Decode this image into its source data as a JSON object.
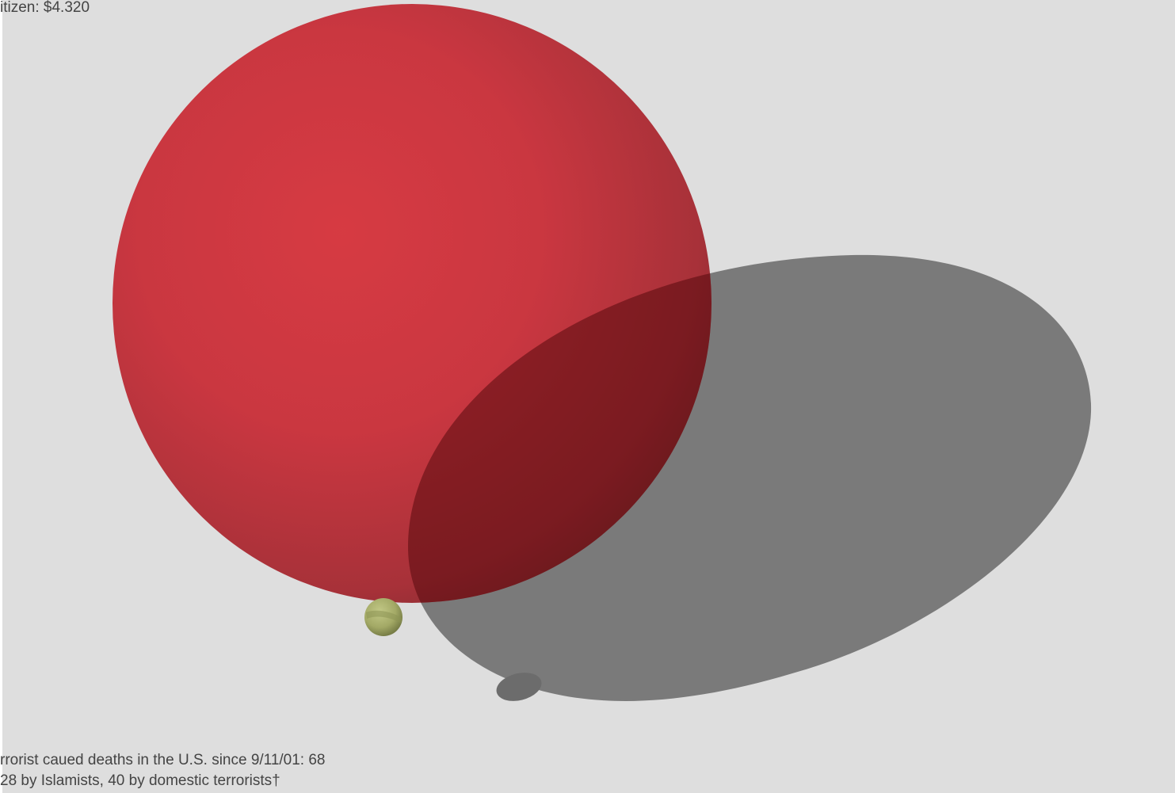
{
  "top_caption": {
    "text": "itizen: $4.320"
  },
  "bottom_caption": {
    "line1": "rrorist caued deaths in the U.S. since 9/11/01: 68",
    "line2": "28 by Islamists, 40 by domestic terrorists†"
  },
  "colors": {
    "background": "#dedede",
    "large_sphere": "#c8323a",
    "large_sphere_dark": "#5a1a1e",
    "small_sphere": "#a9b06a",
    "shadow": "#6a6a6a",
    "text": "#444444"
  },
  "objects": {
    "large_sphere": "red-sphere",
    "small_sphere": "olive-sphere",
    "large_shadow": "sphere-shadow",
    "small_shadow": "small-sphere-shadow"
  }
}
